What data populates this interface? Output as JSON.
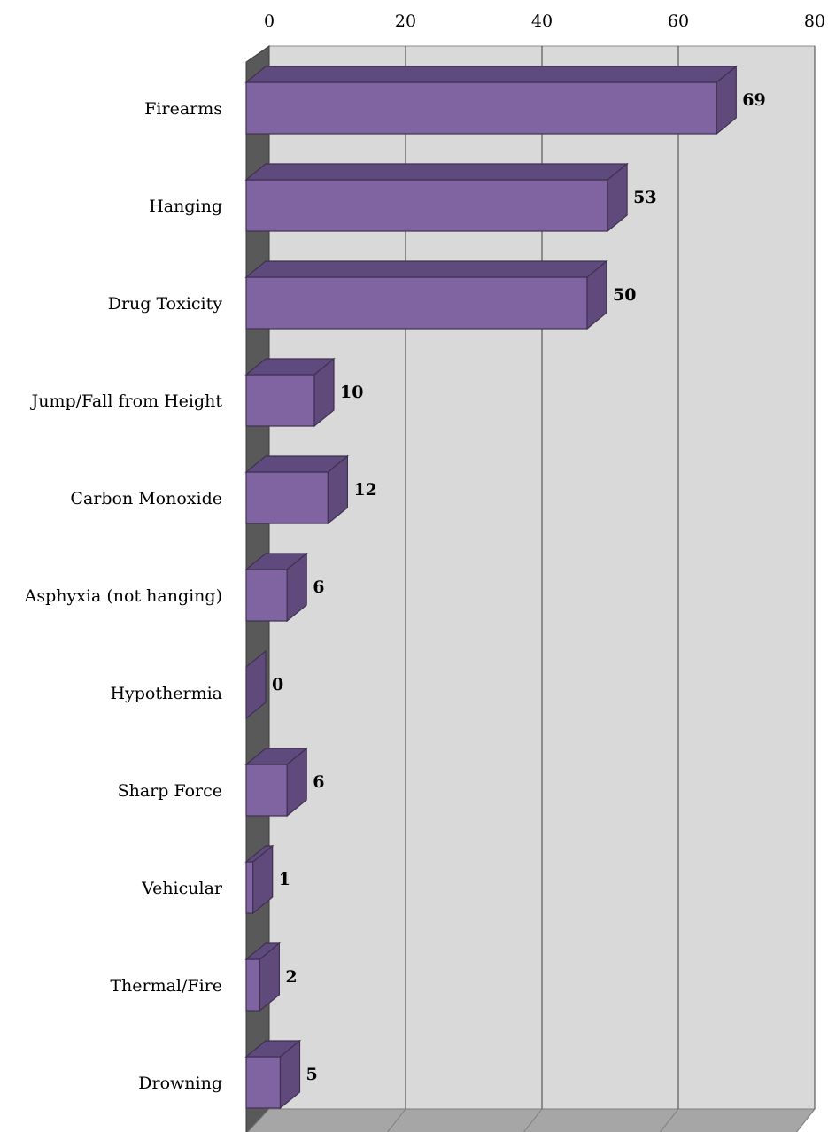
{
  "chart_data": {
    "type": "bar",
    "orientation": "horizontal",
    "style": "3d",
    "categories": [
      "Firearms",
      "Hanging",
      "Drug Toxicity",
      "Jump/Fall from Height",
      "Carbon Monoxide",
      "Asphyxia (not hanging)",
      "Hypothermia",
      "Sharp Force",
      "Vehicular",
      "Thermal/Fire",
      "Drowning"
    ],
    "values": [
      69,
      53,
      50,
      10,
      12,
      6,
      0,
      6,
      1,
      2,
      5
    ],
    "data_labels": [
      "69",
      "53",
      "50",
      "10",
      "12",
      "6",
      "0",
      "6",
      "1",
      "2",
      "5"
    ],
    "xlim": [
      0,
      80
    ],
    "x_ticks": [
      "0",
      "20",
      "40",
      "60",
      "80"
    ],
    "x_axis_position": "top",
    "title": "",
    "xlabel": "",
    "ylabel": "",
    "grid": true,
    "legend": "none",
    "colors": {
      "bar_front": "#8064a2",
      "bar_top": "#5f4a7d",
      "bar_side": "#604a7b",
      "bar_edge": "#3f3151",
      "back_wall": "#d9d9d9",
      "side_wall": "#595959",
      "floor": "#a6a6a6",
      "gridline": "#404040"
    }
  }
}
